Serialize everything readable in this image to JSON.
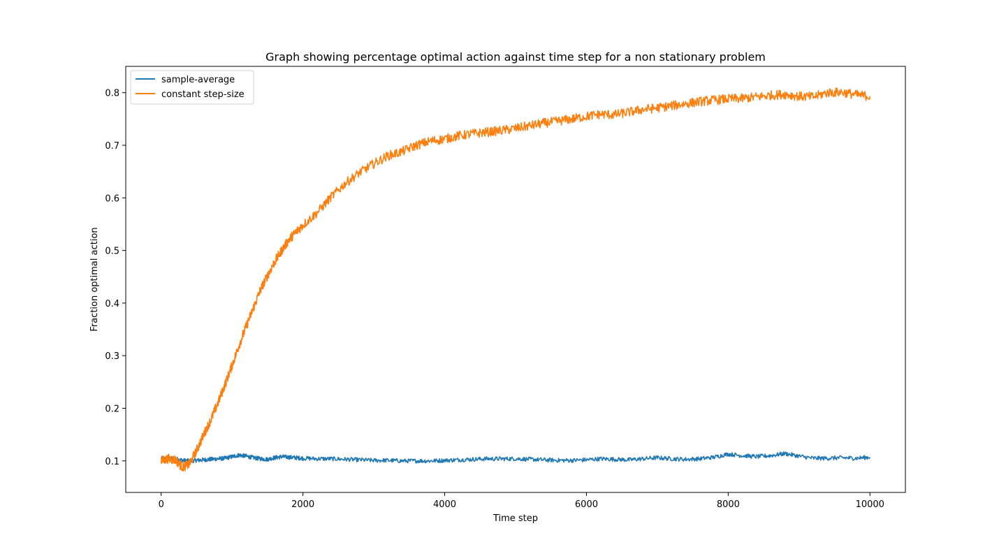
{
  "chart_data": {
    "type": "line",
    "title": "Graph showing percentage optimal action against time step for a non stationary problem",
    "xlabel": "Time step",
    "ylabel": "Fraction optimal action",
    "xlim": [
      -500,
      10500
    ],
    "ylim": [
      0.04,
      0.85
    ],
    "x_ticks": [
      0,
      2000,
      4000,
      6000,
      8000,
      10000
    ],
    "y_ticks": [
      0.1,
      0.2,
      0.3,
      0.4,
      0.5,
      0.6,
      0.7,
      0.8
    ],
    "grid": false,
    "legend_position": "top-left",
    "series": [
      {
        "name": "sample-average",
        "color": "#1f77b4",
        "x": [
          0,
          100,
          200,
          300,
          400,
          500,
          600,
          700,
          800,
          900,
          1000,
          1100,
          1200,
          1300,
          1400,
          1500,
          1600,
          1700,
          1800,
          1900,
          2000,
          2200,
          2400,
          2600,
          2800,
          3000,
          3200,
          3400,
          3600,
          3800,
          4000,
          4200,
          4400,
          4600,
          4800,
          5000,
          5200,
          5400,
          5600,
          5800,
          6000,
          6200,
          6400,
          6600,
          6800,
          7000,
          7200,
          7400,
          7600,
          7800,
          8000,
          8200,
          8400,
          8600,
          8800,
          9000,
          9200,
          9400,
          9600,
          9800,
          10000
        ],
        "y": [
          0.105,
          0.105,
          0.104,
          0.101,
          0.1,
          0.101,
          0.102,
          0.103,
          0.104,
          0.105,
          0.108,
          0.111,
          0.109,
          0.106,
          0.104,
          0.103,
          0.106,
          0.108,
          0.107,
          0.106,
          0.105,
          0.104,
          0.104,
          0.103,
          0.102,
          0.101,
          0.101,
          0.1,
          0.1,
          0.1,
          0.101,
          0.102,
          0.103,
          0.104,
          0.104,
          0.104,
          0.103,
          0.102,
          0.101,
          0.101,
          0.102,
          0.104,
          0.103,
          0.102,
          0.104,
          0.106,
          0.104,
          0.103,
          0.104,
          0.107,
          0.113,
          0.11,
          0.108,
          0.11,
          0.114,
          0.109,
          0.105,
          0.105,
          0.106,
          0.105,
          0.107
        ]
      },
      {
        "name": "constant step-size",
        "color": "#ff7f0e",
        "x": [
          0,
          100,
          200,
          300,
          400,
          500,
          600,
          700,
          800,
          900,
          1000,
          1100,
          1200,
          1300,
          1400,
          1500,
          1600,
          1700,
          1800,
          1900,
          2000,
          2200,
          2400,
          2600,
          2800,
          3000,
          3200,
          3400,
          3600,
          3800,
          4000,
          4200,
          4400,
          4600,
          4800,
          5000,
          5200,
          5400,
          5600,
          5800,
          6000,
          6200,
          6400,
          6600,
          6800,
          7000,
          7200,
          7400,
          7600,
          7800,
          8000,
          8200,
          8400,
          8600,
          8800,
          9000,
          9200,
          9400,
          9600,
          9800,
          10000
        ],
        "y": [
          0.1,
          0.104,
          0.102,
          0.088,
          0.094,
          0.12,
          0.15,
          0.178,
          0.21,
          0.245,
          0.282,
          0.32,
          0.356,
          0.39,
          0.425,
          0.452,
          0.478,
          0.5,
          0.52,
          0.535,
          0.548,
          0.572,
          0.602,
          0.628,
          0.648,
          0.665,
          0.68,
          0.688,
          0.7,
          0.708,
          0.712,
          0.718,
          0.722,
          0.725,
          0.728,
          0.732,
          0.737,
          0.742,
          0.746,
          0.75,
          0.755,
          0.759,
          0.758,
          0.763,
          0.768,
          0.771,
          0.775,
          0.779,
          0.783,
          0.786,
          0.788,
          0.789,
          0.792,
          0.795,
          0.797,
          0.793,
          0.792,
          0.8,
          0.801,
          0.796,
          0.793
        ]
      }
    ]
  }
}
